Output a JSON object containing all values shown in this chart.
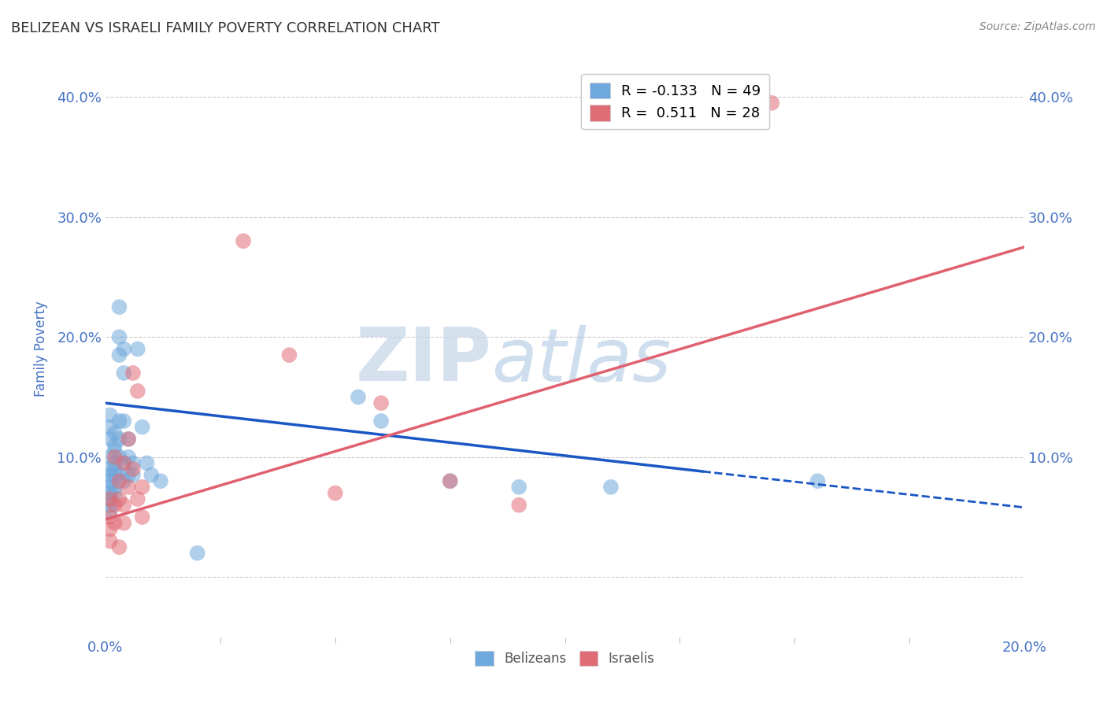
{
  "title": "BELIZEAN VS ISRAELI FAMILY POVERTY CORRELATION CHART",
  "source": "Source: ZipAtlas.com",
  "ylabel": "Family Poverty",
  "xlim": [
    0.0,
    0.2
  ],
  "ylim": [
    -0.05,
    0.43
  ],
  "ytick_labels": [
    "",
    "10.0%",
    "20.0%",
    "30.0%",
    "40.0%"
  ],
  "ytick_values": [
    0.0,
    0.1,
    0.2,
    0.3,
    0.4
  ],
  "xtick_labels": [
    "0.0%",
    "20.0%"
  ],
  "xtick_values": [
    0.0,
    0.2
  ],
  "belizean_color": "#6fa8dc",
  "israeli_color": "#e06c75",
  "belizean_R": -0.133,
  "belizean_N": 49,
  "israeli_R": 0.511,
  "israeli_N": 28,
  "background_color": "#ffffff",
  "grid_color": "#cccccc",
  "tick_label_color": "#4472c4",
  "axis_label_color": "#4472c4",
  "belizean_points": [
    [
      0.001,
      0.135
    ],
    [
      0.001,
      0.125
    ],
    [
      0.001,
      0.115
    ],
    [
      0.001,
      0.1
    ],
    [
      0.001,
      0.09
    ],
    [
      0.001,
      0.085
    ],
    [
      0.001,
      0.08
    ],
    [
      0.001,
      0.075
    ],
    [
      0.001,
      0.07
    ],
    [
      0.001,
      0.065
    ],
    [
      0.001,
      0.06
    ],
    [
      0.001,
      0.055
    ],
    [
      0.002,
      0.12
    ],
    [
      0.002,
      0.11
    ],
    [
      0.002,
      0.105
    ],
    [
      0.002,
      0.095
    ],
    [
      0.002,
      0.09
    ],
    [
      0.002,
      0.085
    ],
    [
      0.002,
      0.075
    ],
    [
      0.002,
      0.07
    ],
    [
      0.003,
      0.225
    ],
    [
      0.003,
      0.2
    ],
    [
      0.003,
      0.185
    ],
    [
      0.003,
      0.13
    ],
    [
      0.003,
      0.115
    ],
    [
      0.003,
      0.1
    ],
    [
      0.003,
      0.085
    ],
    [
      0.004,
      0.19
    ],
    [
      0.004,
      0.17
    ],
    [
      0.004,
      0.13
    ],
    [
      0.004,
      0.095
    ],
    [
      0.004,
      0.08
    ],
    [
      0.005,
      0.115
    ],
    [
      0.005,
      0.1
    ],
    [
      0.005,
      0.085
    ],
    [
      0.006,
      0.095
    ],
    [
      0.006,
      0.085
    ],
    [
      0.007,
      0.19
    ],
    [
      0.008,
      0.125
    ],
    [
      0.009,
      0.095
    ],
    [
      0.01,
      0.085
    ],
    [
      0.012,
      0.08
    ],
    [
      0.02,
      0.02
    ],
    [
      0.055,
      0.15
    ],
    [
      0.06,
      0.13
    ],
    [
      0.075,
      0.08
    ],
    [
      0.09,
      0.075
    ],
    [
      0.11,
      0.075
    ],
    [
      0.155,
      0.08
    ]
  ],
  "israeli_points": [
    [
      0.001,
      0.065
    ],
    [
      0.001,
      0.05
    ],
    [
      0.001,
      0.04
    ],
    [
      0.001,
      0.03
    ],
    [
      0.002,
      0.1
    ],
    [
      0.002,
      0.06
    ],
    [
      0.002,
      0.045
    ],
    [
      0.003,
      0.08
    ],
    [
      0.003,
      0.065
    ],
    [
      0.003,
      0.025
    ],
    [
      0.004,
      0.095
    ],
    [
      0.004,
      0.06
    ],
    [
      0.004,
      0.045
    ],
    [
      0.005,
      0.115
    ],
    [
      0.005,
      0.075
    ],
    [
      0.006,
      0.17
    ],
    [
      0.006,
      0.09
    ],
    [
      0.007,
      0.155
    ],
    [
      0.007,
      0.065
    ],
    [
      0.008,
      0.075
    ],
    [
      0.008,
      0.05
    ],
    [
      0.03,
      0.28
    ],
    [
      0.04,
      0.185
    ],
    [
      0.05,
      0.07
    ],
    [
      0.06,
      0.145
    ],
    [
      0.075,
      0.08
    ],
    [
      0.09,
      0.06
    ],
    [
      0.145,
      0.395
    ]
  ],
  "belizean_line_solid": {
    "x0": 0.0,
    "y0": 0.145,
    "x1": 0.13,
    "y1": 0.088
  },
  "belizean_line_dashed": {
    "x0": 0.13,
    "y0": 0.088,
    "x1": 0.2,
    "y1": 0.058
  },
  "israeli_line": {
    "x0": 0.0,
    "y0": 0.048,
    "x1": 0.2,
    "y1": 0.275
  }
}
